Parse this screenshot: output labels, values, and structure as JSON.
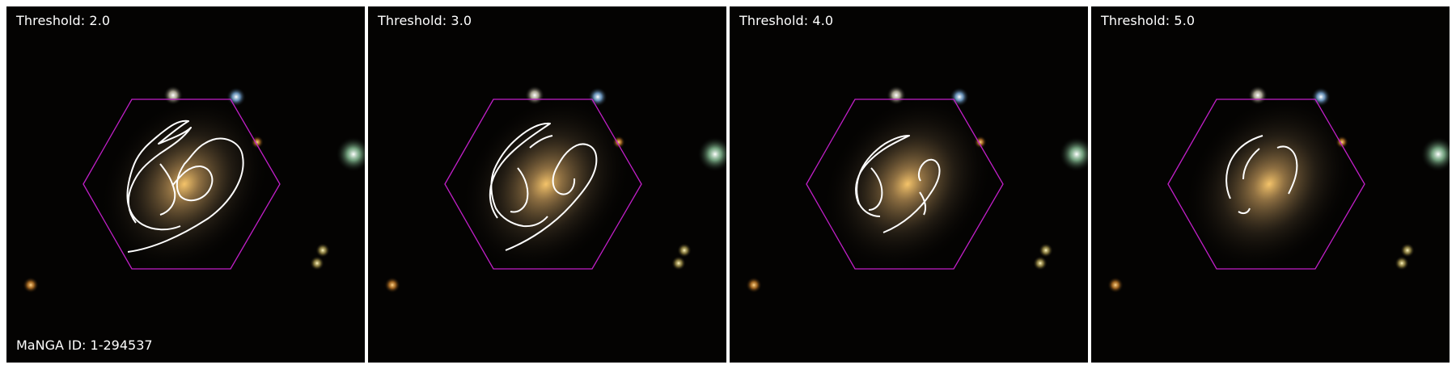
{
  "figure": {
    "object_id_label": "MaNGA ID: 1-294537",
    "panels": [
      {
        "title": "Threshold: 2.0"
      },
      {
        "title": "Threshold: 3.0"
      },
      {
        "title": "Threshold: 4.0"
      },
      {
        "title": "Threshold: 5.0"
      }
    ]
  },
  "colors": {
    "hexagon_outline": "#c21fc8",
    "contour_line": "#ffffff",
    "background": "#040302"
  }
}
